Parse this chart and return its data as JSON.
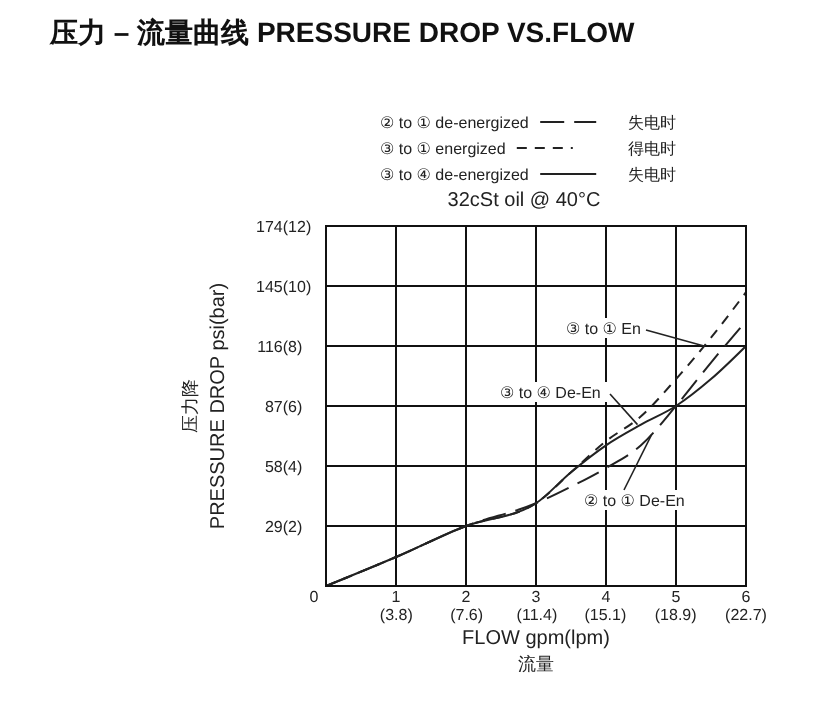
{
  "chart_data": {
    "type": "line",
    "title": "压力 – 流量曲线 PRESSURE DROP VS.FLOW",
    "subtitle": "32cSt oil @ 40°C",
    "xlabel": "FLOW gpm(lpm)\n流量",
    "ylabel": "压力降\nPRESSURE DROP psi(bar)",
    "xlim": [
      0,
      6
    ],
    "ylim": [
      0,
      174
    ],
    "xticks": [
      0,
      1,
      2,
      3,
      4,
      5,
      6
    ],
    "x2lim": [
      0,
      22.7
    ],
    "x2ticks": [
      {
        "value": 3.8,
        "label": "(3.8)"
      },
      {
        "value": 7.6,
        "label": "(7.6)"
      },
      {
        "value": 11.4,
        "label": "(11.4)"
      },
      {
        "value": 15.1,
        "label": "(15.1)"
      },
      {
        "value": 18.9,
        "label": "(18.9)"
      },
      {
        "value": 22.7,
        "label": "(22.7)"
      }
    ],
    "yticks": [
      {
        "value": 0,
        "label": null
      },
      29,
      58,
      87,
      116,
      145,
      174
    ],
    "y2lim": [
      0,
      12
    ],
    "y2ticks": [
      {
        "value": 2,
        "label": "(2)"
      },
      {
        "value": 4,
        "label": "(4)"
      },
      {
        "value": 6,
        "label": "(6)"
      },
      {
        "value": 8,
        "label": "(8)"
      },
      {
        "value": 10,
        "label": "(10)"
      },
      {
        "value": 12,
        "label": "(12)"
      }
    ],
    "grid": true,
    "legend": "top",
    "marker": "none",
    "series": [
      {
        "name": "② to ① de-energized",
        "color": "#222222",
        "line_style": "dashed",
        "x": [
          0,
          1,
          2,
          3,
          3.5,
          4,
          4.5,
          5,
          5.5,
          6
        ],
        "values": [
          0,
          14,
          29,
          40,
          48,
          57,
          68,
          87,
          108,
          128
        ]
      },
      {
        "name": "③ to ① energized",
        "color": "#222222",
        "line_style": "dashed",
        "x": [
          0,
          1,
          2,
          3,
          3.5,
          4,
          4.5,
          5,
          5.5,
          6
        ],
        "values": [
          0,
          14,
          29,
          40,
          55,
          70,
          82,
          100,
          120,
          142
        ]
      },
      {
        "name": "③ to ④ de-energized",
        "color": "#222222",
        "line_style": "solid",
        "x": [
          0,
          1,
          2,
          3,
          3.5,
          4,
          4.5,
          5,
          5.5,
          6
        ],
        "values": [
          0,
          14,
          29,
          40,
          55,
          68,
          78,
          87,
          100,
          116
        ]
      }
    ],
    "annotations": [
      {
        "text": "③ to ① En",
        "x": 5.4,
        "y": 116
      },
      {
        "text": "③ to ④ De-En",
        "x": 4.45,
        "y": 78
      },
      {
        "text": "② to ① De-En",
        "x": 4.65,
        "y": 73
      },
      "失电时",
      "得电时",
      "失电时"
    ]
  }
}
